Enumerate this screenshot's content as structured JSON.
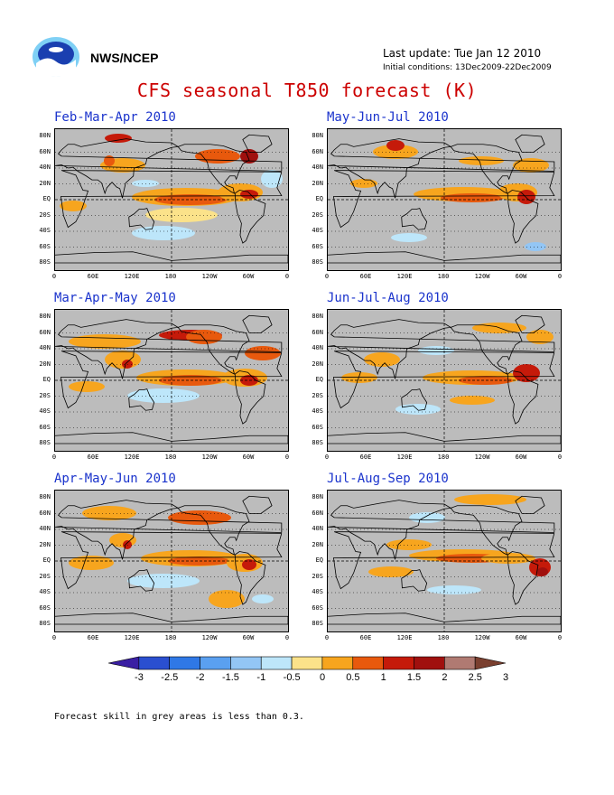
{
  "header": {
    "agency": "NWS/NCEP",
    "last_update": "Last update: Tue Jan 12 2010",
    "initial_conditions": "Initial conditions: 13Dec2009-22Dec2009",
    "title": "CFS seasonal T850 forecast (K)"
  },
  "panels": [
    {
      "title": "Feb-Mar-Apr 2010"
    },
    {
      "title": "May-Jun-Jul 2010"
    },
    {
      "title": "Mar-Apr-May 2010"
    },
    {
      "title": "Jun-Jul-Aug 2010"
    },
    {
      "title": "Apr-May-Jun 2010"
    },
    {
      "title": "Jul-Aug-Sep 2010"
    }
  ],
  "axes": {
    "lat_labels": [
      "80N",
      "60N",
      "40N",
      "20N",
      "EQ",
      "20S",
      "40S",
      "60S",
      "80S"
    ],
    "lon_labels": [
      "0",
      "60E",
      "120E",
      "180",
      "120W",
      "60W",
      "0"
    ]
  },
  "colorbar": {
    "labels": [
      "-3",
      "-2.5",
      "-2",
      "-1.5",
      "-1",
      "-0.5",
      "0",
      "0.5",
      "1",
      "1.5",
      "2",
      "2.5",
      "3"
    ],
    "colors": [
      "#3a1fa3",
      "#2a4fd0",
      "#2f78e6",
      "#5aa0f0",
      "#93c6f5",
      "#bde6fa",
      "#fbe28a",
      "#f7a51e",
      "#e8590d",
      "#c51a0a",
      "#a0100e",
      "#b07a72",
      "#7a3f2f"
    ]
  },
  "footnote": "Forecast skill in grey areas is less than 0.3."
}
